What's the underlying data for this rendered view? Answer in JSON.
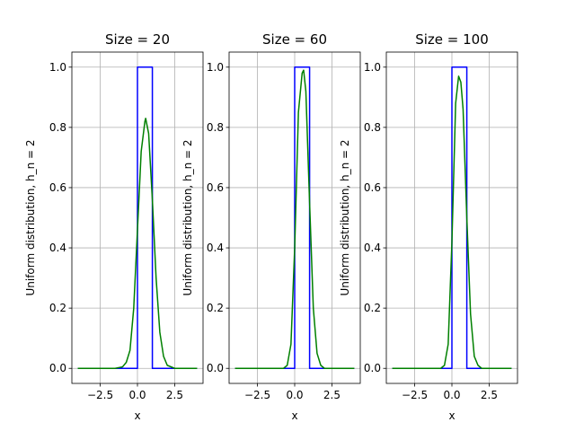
{
  "chart_data": [
    {
      "type": "line",
      "title": "Size = 20",
      "xlabel": "x",
      "ylabel": "Uniform distribution, h_n = 2",
      "xlim": [
        -4.4,
        4.4
      ],
      "ylim": [
        -0.05,
        1.05
      ],
      "xticks": [
        -2.5,
        0.0,
        2.5
      ],
      "xtick_labels": [
        "−2.5",
        "0.0",
        "2.5"
      ],
      "yticks": [
        0.0,
        0.2,
        0.4,
        0.6,
        0.8,
        1.0
      ],
      "ytick_labels": [
        "0.0",
        "0.2",
        "0.4",
        "0.6",
        "0.8",
        "1.0"
      ],
      "grid": true,
      "series": [
        {
          "color": "#0000ff",
          "x": [
            -4,
            0,
            0,
            1,
            1,
            4
          ],
          "y": [
            0,
            0,
            1,
            1,
            0,
            0
          ]
        },
        {
          "color": "#008000",
          "x": [
            -4,
            -1.5,
            -1,
            -0.75,
            -0.5,
            -0.25,
            0,
            0.25,
            0.5,
            0.55,
            0.75,
            1,
            1.25,
            1.5,
            1.75,
            2,
            2.5,
            4
          ],
          "y": [
            0,
            0,
            0.005,
            0.02,
            0.06,
            0.2,
            0.46,
            0.72,
            0.82,
            0.83,
            0.78,
            0.56,
            0.3,
            0.12,
            0.04,
            0.01,
            0,
            0
          ]
        }
      ]
    },
    {
      "type": "line",
      "title": "Size = 60",
      "xlabel": "x",
      "ylabel": "Uniform distribution, h_n = 2",
      "xlim": [
        -4.4,
        4.4
      ],
      "ylim": [
        -0.05,
        1.05
      ],
      "xticks": [
        -2.5,
        0.0,
        2.5
      ],
      "xtick_labels": [
        "−2.5",
        "0.0",
        "2.5"
      ],
      "yticks": [
        0.0,
        0.2,
        0.4,
        0.6,
        0.8,
        1.0
      ],
      "ytick_labels": [
        "0.0",
        "0.2",
        "0.4",
        "0.6",
        "0.8",
        "1.0"
      ],
      "grid": true,
      "series": [
        {
          "color": "#0000ff",
          "x": [
            -4,
            0,
            0,
            1,
            1,
            4
          ],
          "y": [
            0,
            0,
            1,
            1,
            0,
            0
          ]
        },
        {
          "color": "#008000",
          "x": [
            -4,
            -0.75,
            -0.5,
            -0.25,
            0,
            0.25,
            0.5,
            0.6,
            0.75,
            1,
            1.25,
            1.5,
            1.75,
            2,
            4
          ],
          "y": [
            0,
            0,
            0.01,
            0.08,
            0.4,
            0.85,
            0.98,
            0.99,
            0.92,
            0.55,
            0.2,
            0.05,
            0.01,
            0,
            0
          ]
        }
      ]
    },
    {
      "type": "line",
      "title": "Size = 100",
      "xlabel": "x",
      "ylabel": "Uniform distribution, h_n = 2",
      "xlim": [
        -4.4,
        4.4
      ],
      "ylim": [
        -0.05,
        1.05
      ],
      "xticks": [
        -2.5,
        0.0,
        2.5
      ],
      "xtick_labels": [
        "−2.5",
        "0.0",
        "2.5"
      ],
      "yticks": [
        0.0,
        0.2,
        0.4,
        0.6,
        0.8,
        1.0
      ],
      "ytick_labels": [
        "0.0",
        "0.2",
        "0.4",
        "0.6",
        "0.8",
        "1.0"
      ],
      "grid": true,
      "series": [
        {
          "color": "#0000ff",
          "x": [
            -4,
            0,
            0,
            1,
            1,
            4
          ],
          "y": [
            0,
            0,
            1,
            1,
            0,
            0
          ]
        },
        {
          "color": "#008000",
          "x": [
            -4,
            -0.75,
            -0.5,
            -0.25,
            0,
            0.25,
            0.45,
            0.6,
            0.75,
            1,
            1.25,
            1.5,
            1.75,
            2,
            4
          ],
          "y": [
            0,
            0,
            0.01,
            0.08,
            0.42,
            0.88,
            0.97,
            0.95,
            0.86,
            0.5,
            0.18,
            0.04,
            0.01,
            0,
            0
          ]
        }
      ]
    }
  ]
}
